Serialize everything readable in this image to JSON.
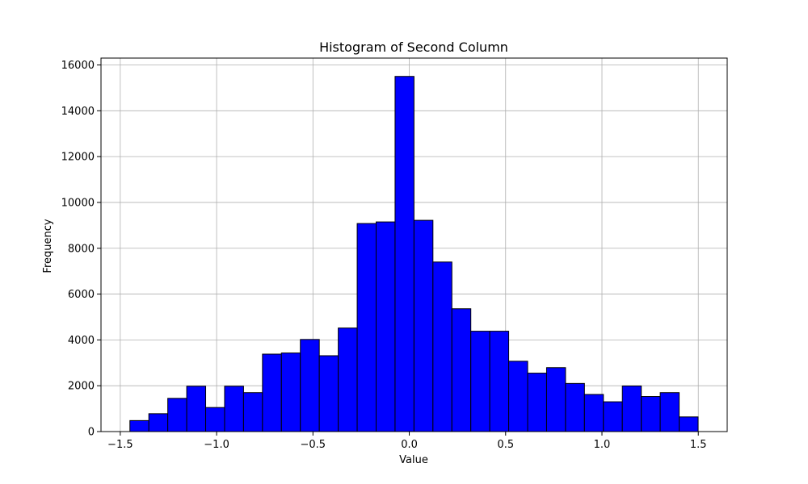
{
  "chart_data": {
    "type": "histogram",
    "title": "Histogram of Second Column",
    "xlabel": "Value",
    "ylabel": "Frequency",
    "xlim": [
      -1.6,
      1.65
    ],
    "ylim": [
      0,
      16300
    ],
    "grid": true,
    "bar_color": "#0000ff",
    "edge_color": "#000000",
    "bin_start": -1.45,
    "bin_width": 0.0983,
    "values": [
      480,
      780,
      1450,
      1980,
      1050,
      1980,
      1700,
      3380,
      3430,
      4020,
      3310,
      4520,
      9080,
      9150,
      15500,
      9220,
      7400,
      5360,
      4380,
      4380,
      3070,
      2550,
      2790,
      2100,
      1620,
      1300,
      1990,
      1530,
      1700,
      640
    ],
    "x_ticks": [
      {
        "value": -1.5,
        "label": "−1.5"
      },
      {
        "value": -1.0,
        "label": "−1.0"
      },
      {
        "value": -0.5,
        "label": "−0.5"
      },
      {
        "value": 0.0,
        "label": "0.0"
      },
      {
        "value": 0.5,
        "label": "0.5"
      },
      {
        "value": 1.0,
        "label": "1.0"
      },
      {
        "value": 1.5,
        "label": "1.5"
      }
    ],
    "y_ticks": [
      {
        "value": 0,
        "label": "0"
      },
      {
        "value": 2000,
        "label": "2000"
      },
      {
        "value": 4000,
        "label": "4000"
      },
      {
        "value": 6000,
        "label": "6000"
      },
      {
        "value": 8000,
        "label": "8000"
      },
      {
        "value": 10000,
        "label": "10000"
      },
      {
        "value": 12000,
        "label": "12000"
      },
      {
        "value": 14000,
        "label": "14000"
      },
      {
        "value": 16000,
        "label": "16000"
      }
    ]
  }
}
